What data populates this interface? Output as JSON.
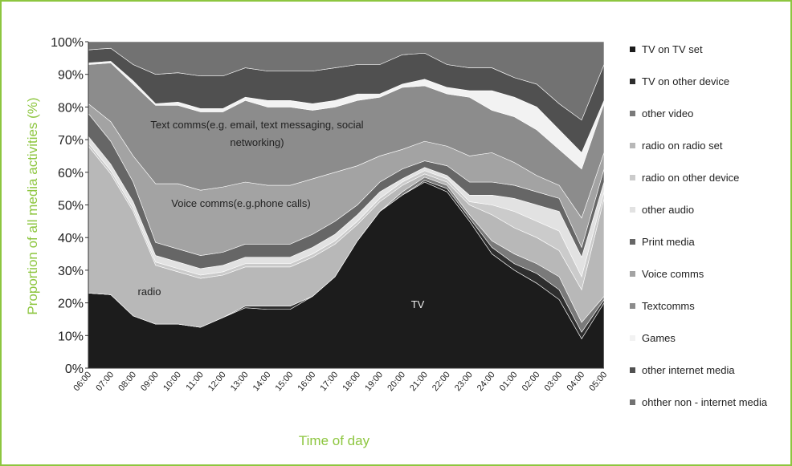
{
  "chart_data": {
    "type": "stacked_area",
    "y_label": "Proportion of all media activities (%)",
    "x_label": "Time of day",
    "categories": [
      "06:00",
      "07:00",
      "08:00",
      "09:00",
      "10:00",
      "11:00",
      "12:00",
      "13:00",
      "14:00",
      "15:00",
      "16:00",
      "17:00",
      "18:00",
      "19:00",
      "20:00",
      "21:00",
      "22:00",
      "23:00",
      "24:00",
      "01:00",
      "02:00",
      "03:00",
      "04:00",
      "05:00"
    ],
    "ylim": [
      0,
      100
    ],
    "yticks": [
      {
        "value": 0,
        "label": "0%"
      },
      {
        "value": 10,
        "label": "10%"
      },
      {
        "value": 20,
        "label": "20%"
      },
      {
        "value": 30,
        "label": "30%"
      },
      {
        "value": 40,
        "label": "40%"
      },
      {
        "value": 50,
        "label": "50%"
      },
      {
        "value": 60,
        "label": "60%"
      },
      {
        "value": 70,
        "label": "70%"
      },
      {
        "value": 80,
        "label": "80%"
      },
      {
        "value": 90,
        "label": "90%"
      },
      {
        "value": 100,
        "label": "100%"
      }
    ],
    "annotations": [
      "Text comms(e.g. email, text messaging, social",
      "networking)",
      "Voice comms(e.g.phone calls)",
      "radio",
      "TV"
    ],
    "series": [
      {
        "name": "TV on TV set",
        "color": "#1c1c1c",
        "values": [
          23,
          22.5,
          16,
          13.5,
          13.5,
          12.5,
          15.5,
          18.5,
          18,
          18,
          22,
          28,
          39,
          48,
          53,
          57,
          54,
          45,
          35,
          30,
          26,
          21,
          9,
          20
        ]
      },
      {
        "name": "TV on other device",
        "color": "#2e2e2e",
        "values": [
          0,
          0,
          0,
          0,
          0,
          0,
          0,
          0.5,
          1,
          1,
          0,
          0,
          0,
          0,
          0,
          0.5,
          1,
          1,
          2,
          2,
          3,
          3,
          2,
          1
        ]
      },
      {
        "name": "other video",
        "color": "#7a7a7a",
        "values": [
          0,
          0,
          0,
          0,
          0,
          0,
          0,
          0,
          0,
          0,
          0,
          0,
          0,
          0,
          1,
          1,
          1,
          1,
          2,
          3,
          3,
          4,
          3,
          1
        ]
      },
      {
        "name": "radio on radio set",
        "color": "#b8b8b8",
        "values": [
          45,
          37,
          32,
          18,
          16,
          15,
          13,
          12,
          12,
          12,
          12,
          10,
          5,
          3,
          2,
          1,
          1,
          3,
          8,
          8,
          8,
          8,
          10,
          30
        ]
      },
      {
        "name": "radio on other device",
        "color": "#cbcbcb",
        "values": [
          1,
          1,
          1,
          1,
          1,
          1,
          1,
          1,
          1,
          1,
          1,
          1,
          1,
          1,
          1,
          1,
          1,
          1,
          3,
          5,
          5,
          6,
          4,
          2
        ]
      },
      {
        "name": "other audio",
        "color": "#e2e2e2",
        "values": [
          2,
          2,
          2,
          2,
          2,
          2,
          2,
          2,
          2,
          2,
          2,
          2,
          2,
          2,
          1,
          1,
          1,
          2,
          3,
          4,
          5,
          6,
          6,
          3
        ]
      },
      {
        "name": "Print media",
        "color": "#666666",
        "values": [
          7,
          7,
          6,
          4,
          4,
          4,
          4,
          4,
          4,
          4,
          4,
          4,
          3,
          3,
          3,
          2,
          3,
          4,
          4,
          4,
          4,
          4,
          3,
          4
        ]
      },
      {
        "name": "Voice comms",
        "color": "#a3a3a3",
        "values": [
          3,
          6,
          8,
          18,
          20,
          20,
          20,
          19,
          18,
          18,
          17,
          15,
          12,
          8,
          6,
          6,
          6,
          8,
          9,
          7,
          5,
          4,
          9,
          5
        ]
      },
      {
        "name": "Textcomms",
        "color": "#8c8c8c",
        "values": [
          12,
          18,
          22,
          24,
          24,
          24,
          23,
          25,
          24,
          24,
          21,
          20,
          20,
          18,
          19,
          17,
          16,
          18,
          13,
          14,
          14,
          11,
          15,
          15
        ]
      },
      {
        "name": "Games",
        "color": "#f2f2f2",
        "values": [
          0.5,
          0.5,
          1,
          0.5,
          1,
          1,
          1,
          1,
          2,
          2,
          2,
          2,
          2,
          1,
          1,
          2,
          2,
          2,
          6,
          6,
          7,
          6,
          5,
          1
        ]
      },
      {
        "name": "other internet media",
        "color": "#505050",
        "values": [
          4,
          4,
          5,
          9,
          9,
          10,
          10,
          9,
          9,
          9,
          10,
          10,
          9,
          9,
          9,
          8,
          7,
          7,
          7,
          6,
          7,
          8,
          10,
          11
        ]
      },
      {
        "name": "ohther non - internet media",
        "color": "#727272",
        "values": [
          2.5,
          2,
          7,
          10,
          9.5,
          10.5,
          10.5,
          8,
          9,
          9,
          9,
          8,
          7,
          7,
          4,
          3.5,
          7,
          8,
          8,
          11,
          13,
          19,
          24,
          7
        ]
      }
    ]
  }
}
